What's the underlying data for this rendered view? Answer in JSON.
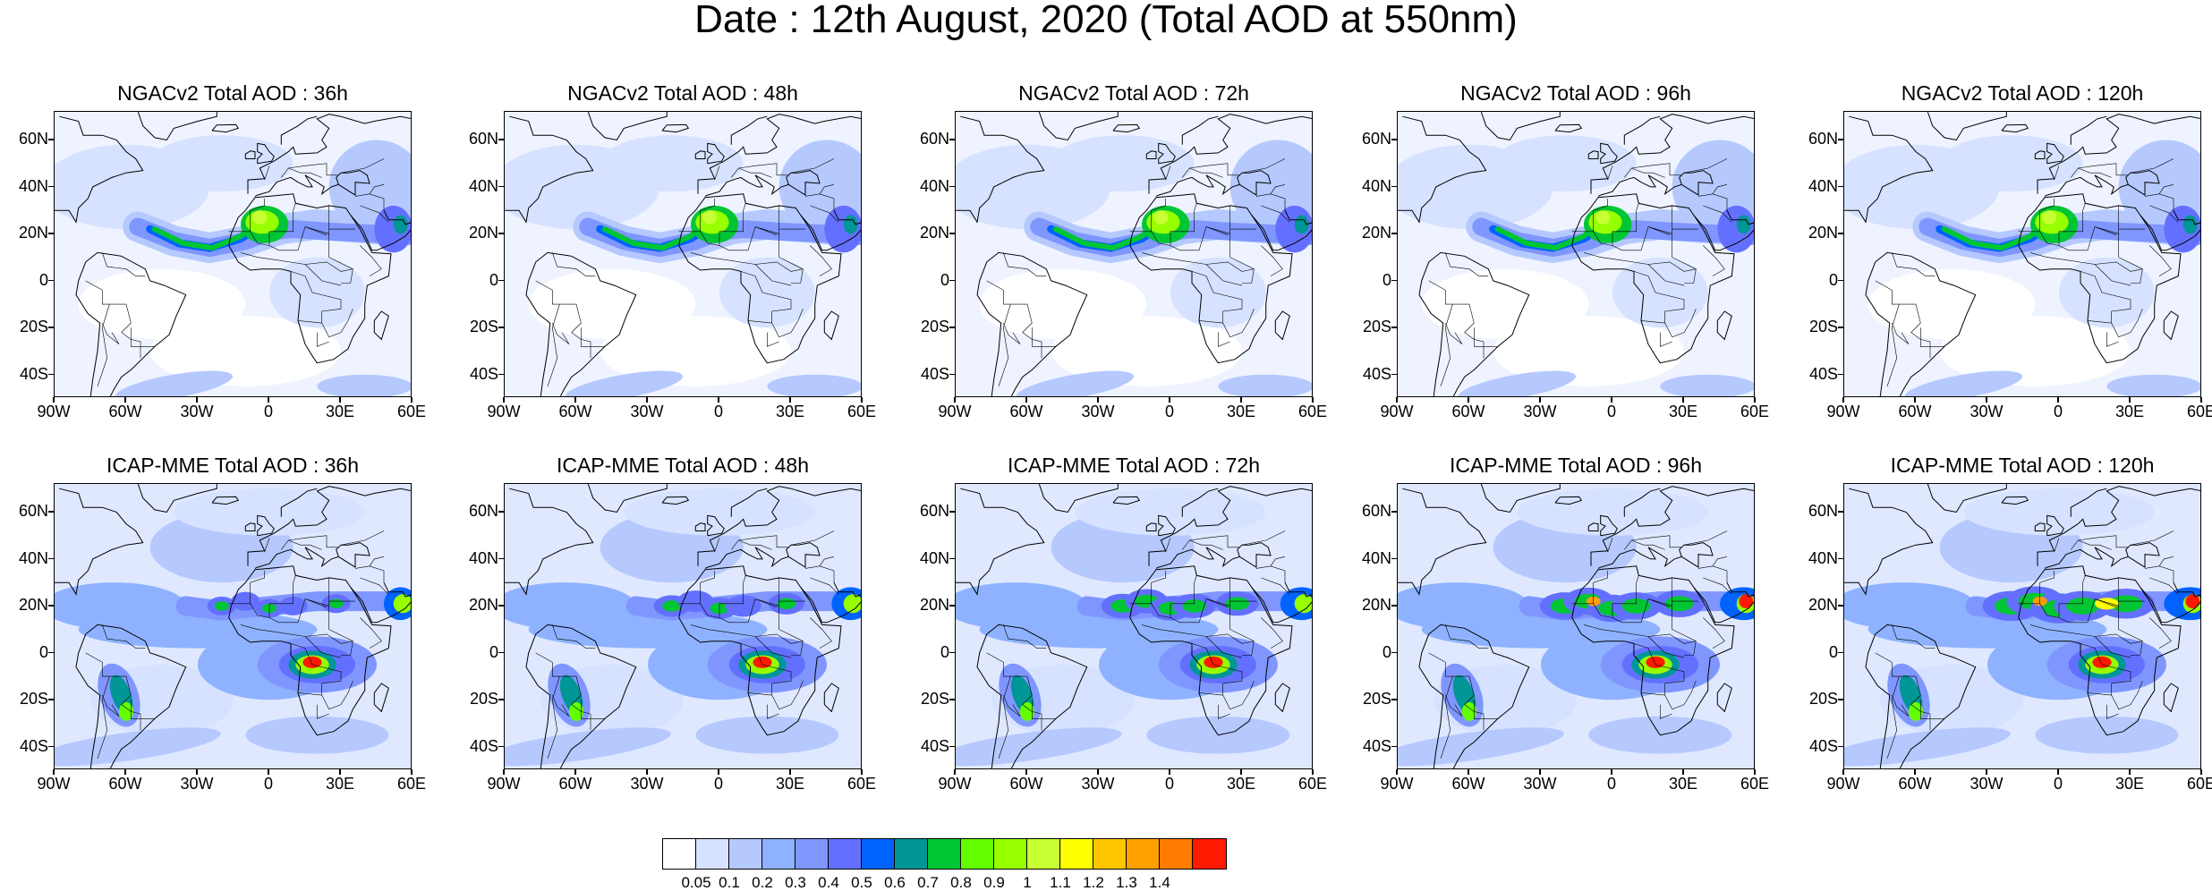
{
  "title": "Date : 12th August, 2020 (Total AOD at 550nm)",
  "rows": [
    {
      "model": "NGACv2",
      "panels": [
        {
          "title": "NGACv2 Total AOD : 36h"
        },
        {
          "title": "NGACv2 Total AOD : 48h"
        },
        {
          "title": "NGACv2 Total AOD : 72h"
        },
        {
          "title": "NGACv2 Total AOD : 96h"
        },
        {
          "title": "NGACv2 Total AOD : 120h"
        }
      ]
    },
    {
      "model": "ICAP-MME",
      "panels": [
        {
          "title": "ICAP-MME Total AOD : 36h"
        },
        {
          "title": "ICAP-MME Total AOD : 48h"
        },
        {
          "title": "ICAP-MME Total AOD : 72h"
        },
        {
          "title": "ICAP-MME Total AOD : 96h"
        },
        {
          "title": "ICAP-MME Total AOD : 120h"
        }
      ]
    }
  ],
  "lat_ticks": [
    {
      "value": 60,
      "label": "60N"
    },
    {
      "value": 40,
      "label": "40N"
    },
    {
      "value": 20,
      "label": "20N"
    },
    {
      "value": 0,
      "label": "0"
    },
    {
      "value": -20,
      "label": "20S"
    },
    {
      "value": -40,
      "label": "40S"
    }
  ],
  "lon_ticks": [
    {
      "value": -90,
      "label": "90W"
    },
    {
      "value": -60,
      "label": "60W"
    },
    {
      "value": -30,
      "label": "30W"
    },
    {
      "value": 0,
      "label": "0"
    },
    {
      "value": 30,
      "label": "30E"
    },
    {
      "value": 60,
      "label": "60E"
    }
  ],
  "map_extent": {
    "lon_min": -90,
    "lon_max": 60,
    "lat_min": -50,
    "lat_max": 72
  },
  "colorbar": {
    "colors": [
      "#ffffff",
      "#d6e2ff",
      "#b5c9ff",
      "#8eb2ff",
      "#7f96ff",
      "#6370ff",
      "#0063ff",
      "#009696",
      "#00c633",
      "#63ff00",
      "#96ff00",
      "#c6ff33",
      "#ffff00",
      "#ffc600",
      "#ffa000",
      "#ff7c00",
      "#ff1900"
    ],
    "labels": [
      "0.05",
      "0.1",
      "0.2",
      "0.3",
      "0.4",
      "0.5",
      "0.6",
      "0.7",
      "0.8",
      "0.9",
      "1",
      "1.1",
      "1.2",
      "1.3",
      "1.4"
    ]
  }
}
